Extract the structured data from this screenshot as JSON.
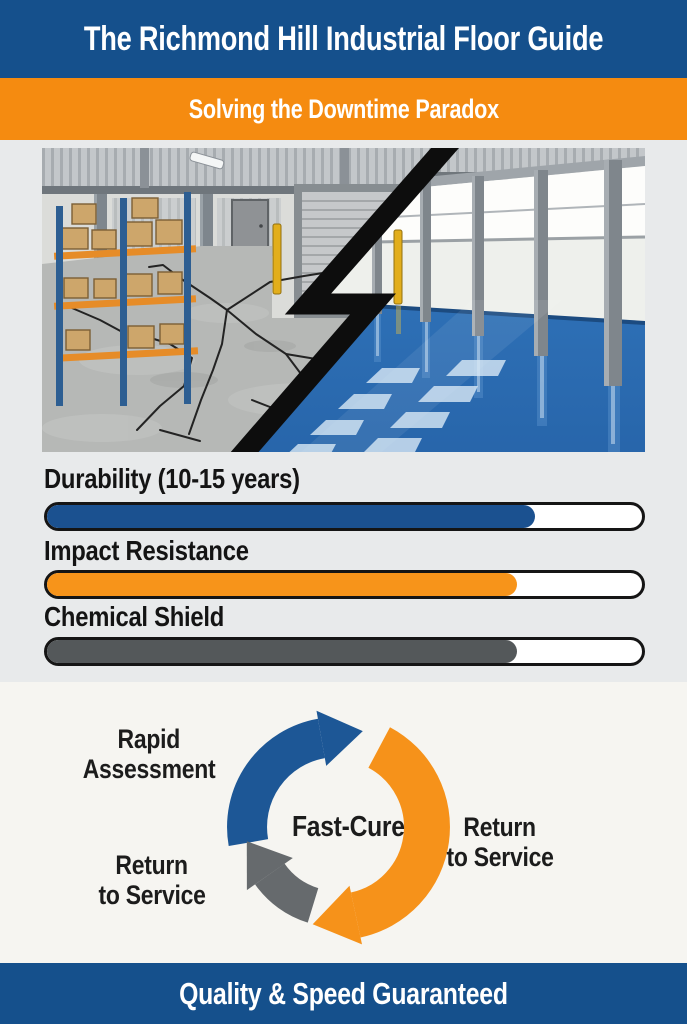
{
  "header": {
    "title": "The Richmond Hill Industrial Floor Guide"
  },
  "banner": {
    "subtitle": "Solving the Downtime Paradox"
  },
  "palette": {
    "header_blue": "#15508c",
    "banner_orange": "#f58b10",
    "bars_section_bg": "#e8eaeb",
    "cycle_section_bg": "#f6f5f1",
    "bar_blue": "#1b5190",
    "bar_orange": "#f7941a",
    "bar_gray": "#54585a",
    "arrow_blue": "#1d5796",
    "arrow_orange": "#f6921a",
    "arrow_gray": "#666a6d"
  },
  "comparison_image": {
    "left_scene": "cracked gray concrete warehouse floor with pallet racks, door and roll-up gate",
    "right_scene": "glossy blue epoxy warehouse floor with steel columns and windows",
    "divider": "black lightning-bolt split"
  },
  "chart_data": {
    "type": "bar",
    "orientation": "horizontal-progress",
    "categories": [
      "Durability (10-15 years)",
      "Impact Resistance",
      "Chemical Shield"
    ],
    "values": [
      82,
      79,
      79
    ],
    "value_unit": "percent of bar filled (no numeric labels shown)",
    "series_colors": [
      "#1b5190",
      "#f7941a",
      "#54585a"
    ],
    "track_color": "#ffffff",
    "title": "",
    "xlabel": "",
    "ylabel": "",
    "xlim": [
      0,
      100
    ],
    "grid": false
  },
  "cycle": {
    "center_label": "Fast-Cure",
    "arrow_colors": {
      "blue": "#1d5796",
      "orange": "#f6921a",
      "gray": "#666a6d"
    },
    "steps": [
      {
        "line1": "Rapid",
        "line2": "Assessment"
      },
      {
        "line1": "Return",
        "line2": "to Service"
      },
      {
        "line1": "Return",
        "line2": "to Service"
      }
    ]
  },
  "footer": {
    "tagline": "Quality & Speed Guaranteed"
  }
}
